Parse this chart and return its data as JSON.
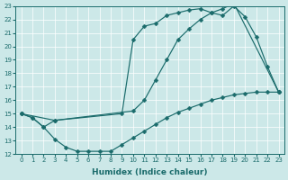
{
  "xlabel": "Humidex (Indice chaleur)",
  "xlim": [
    -0.5,
    23.5
  ],
  "ylim": [
    12,
    23
  ],
  "xticks": [
    0,
    1,
    2,
    3,
    4,
    5,
    6,
    7,
    8,
    9,
    10,
    11,
    12,
    13,
    14,
    15,
    16,
    17,
    18,
    19,
    20,
    21,
    22,
    23
  ],
  "yticks": [
    12,
    13,
    14,
    15,
    16,
    17,
    18,
    19,
    20,
    21,
    22,
    23
  ],
  "bg_color": "#cce8e8",
  "grid_color": "#b0d0d0",
  "line_color": "#1a6b6b",
  "line1_x": [
    0,
    1,
    2,
    3,
    4,
    5,
    6,
    7,
    8,
    9,
    10,
    11,
    12,
    13,
    14,
    15,
    16,
    17,
    18,
    19,
    20,
    21,
    22,
    23
  ],
  "line1_y": [
    15.0,
    14.7,
    14.0,
    13.1,
    12.5,
    12.2,
    12.2,
    12.2,
    12.2,
    12.7,
    13.2,
    13.7,
    14.2,
    14.7,
    15.1,
    15.4,
    15.7,
    16.0,
    16.2,
    16.4,
    16.5,
    16.6,
    16.6,
    16.6
  ],
  "line2_x": [
    0,
    1,
    2,
    3,
    9,
    10,
    11,
    12,
    13,
    14,
    15,
    16,
    17,
    18,
    19,
    20,
    21,
    22,
    23
  ],
  "line2_y": [
    15.0,
    14.7,
    14.0,
    14.5,
    15.0,
    20.5,
    21.5,
    21.7,
    22.3,
    22.5,
    22.7,
    22.8,
    22.5,
    22.3,
    23.0,
    22.2,
    20.7,
    18.5,
    16.6
  ],
  "line3_x": [
    0,
    3,
    10,
    11,
    12,
    13,
    14,
    15,
    16,
    17,
    18,
    19,
    23
  ],
  "line3_y": [
    15.0,
    14.5,
    15.2,
    16.0,
    17.5,
    19.0,
    20.5,
    21.3,
    22.0,
    22.5,
    22.8,
    23.2,
    16.6
  ]
}
